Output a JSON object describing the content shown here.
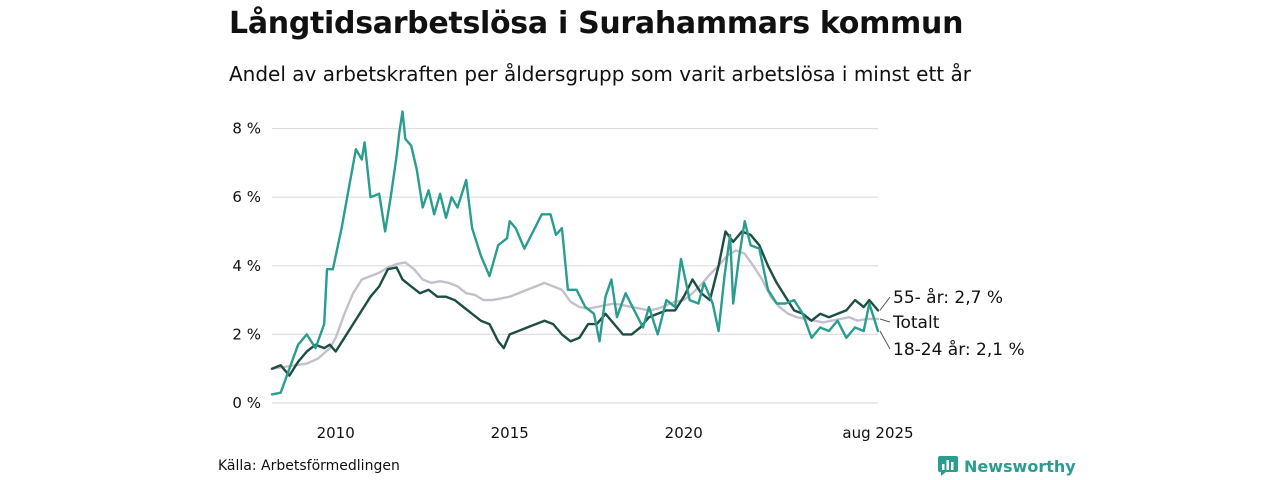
{
  "title": "Långtidsarbetslösa i Surahammars kommun",
  "subtitle": "Andel av arbetskraften per åldersgrupp som varit arbetslösa i minst ett år",
  "source": "Källa: Arbetsförmedlingen",
  "brand": "Newsworthy",
  "colors": {
    "age_55": "#1e4d45",
    "total": "#c3c0cc",
    "age_18_24": "#2a9d8f",
    "grid": "#dedede",
    "brand": "#2a9d8f"
  },
  "chart_data": {
    "type": "line",
    "xlim": [
      2008.17,
      2025.58
    ],
    "ylim": [
      0,
      8.6
    ],
    "y_ticks": [
      0,
      2,
      4,
      6,
      8
    ],
    "y_tick_labels": [
      "0 %",
      "2 %",
      "4 %",
      "6 %",
      "8 %"
    ],
    "x_ticks": [
      2010,
      2015,
      2020,
      2025.58
    ],
    "x_tick_labels": [
      "2010",
      "2015",
      "2020",
      "aug 2025"
    ],
    "grid": true,
    "legend": "line-end labels",
    "series": [
      {
        "name": "Totalt",
        "label": "Totalt",
        "color_key": "total",
        "points": [
          [
            2008.17,
            1.0
          ],
          [
            2008.5,
            1.05
          ],
          [
            2008.83,
            1.1
          ],
          [
            2009.17,
            1.15
          ],
          [
            2009.5,
            1.3
          ],
          [
            2009.83,
            1.6
          ],
          [
            2010.0,
            1.9
          ],
          [
            2010.25,
            2.6
          ],
          [
            2010.5,
            3.2
          ],
          [
            2010.75,
            3.6
          ],
          [
            2011.0,
            3.7
          ],
          [
            2011.25,
            3.8
          ],
          [
            2011.5,
            3.95
          ],
          [
            2011.75,
            4.05
          ],
          [
            2012.0,
            4.1
          ],
          [
            2012.25,
            3.9
          ],
          [
            2012.5,
            3.6
          ],
          [
            2012.75,
            3.5
          ],
          [
            2013.0,
            3.55
          ],
          [
            2013.25,
            3.5
          ],
          [
            2013.5,
            3.4
          ],
          [
            2013.75,
            3.2
          ],
          [
            2014.0,
            3.15
          ],
          [
            2014.25,
            3.0
          ],
          [
            2014.5,
            3.0
          ],
          [
            2014.75,
            3.05
          ],
          [
            2015.0,
            3.1
          ],
          [
            2015.25,
            3.2
          ],
          [
            2015.5,
            3.3
          ],
          [
            2015.75,
            3.4
          ],
          [
            2016.0,
            3.5
          ],
          [
            2016.25,
            3.4
          ],
          [
            2016.5,
            3.3
          ],
          [
            2016.75,
            2.95
          ],
          [
            2017.0,
            2.8
          ],
          [
            2017.25,
            2.75
          ],
          [
            2017.5,
            2.8
          ],
          [
            2017.75,
            2.85
          ],
          [
            2018.0,
            2.9
          ],
          [
            2018.25,
            2.85
          ],
          [
            2018.5,
            2.8
          ],
          [
            2018.75,
            2.75
          ],
          [
            2019.0,
            2.7
          ],
          [
            2019.25,
            2.75
          ],
          [
            2019.5,
            2.85
          ],
          [
            2019.75,
            2.95
          ],
          [
            2020.0,
            3.0
          ],
          [
            2020.25,
            3.2
          ],
          [
            2020.5,
            3.45
          ],
          [
            2020.75,
            3.75
          ],
          [
            2021.0,
            4.0
          ],
          [
            2021.25,
            4.3
          ],
          [
            2021.5,
            4.45
          ],
          [
            2021.75,
            4.35
          ],
          [
            2022.0,
            4.0
          ],
          [
            2022.25,
            3.6
          ],
          [
            2022.5,
            3.1
          ],
          [
            2022.75,
            2.8
          ],
          [
            2023.0,
            2.6
          ],
          [
            2023.25,
            2.5
          ],
          [
            2023.5,
            2.45
          ],
          [
            2023.75,
            2.4
          ],
          [
            2024.0,
            2.35
          ],
          [
            2024.25,
            2.4
          ],
          [
            2024.5,
            2.45
          ],
          [
            2024.75,
            2.5
          ],
          [
            2025.0,
            2.4
          ],
          [
            2025.25,
            2.45
          ],
          [
            2025.58,
            2.45
          ]
        ]
      },
      {
        "name": "55- år",
        "label": "55- år: 2,7 %",
        "color_key": "age_55",
        "points": [
          [
            2008.17,
            1.0
          ],
          [
            2008.42,
            1.1
          ],
          [
            2008.67,
            0.8
          ],
          [
            2008.92,
            1.2
          ],
          [
            2009.17,
            1.5
          ],
          [
            2009.42,
            1.7
          ],
          [
            2009.67,
            1.6
          ],
          [
            2009.83,
            1.7
          ],
          [
            2010.0,
            1.5
          ],
          [
            2010.25,
            1.9
          ],
          [
            2010.5,
            2.3
          ],
          [
            2010.75,
            2.7
          ],
          [
            2011.0,
            3.1
          ],
          [
            2011.25,
            3.4
          ],
          [
            2011.5,
            3.9
          ],
          [
            2011.75,
            3.95
          ],
          [
            2011.92,
            3.6
          ],
          [
            2012.17,
            3.4
          ],
          [
            2012.42,
            3.2
          ],
          [
            2012.67,
            3.3
          ],
          [
            2012.92,
            3.1
          ],
          [
            2013.17,
            3.1
          ],
          [
            2013.42,
            3.0
          ],
          [
            2013.67,
            2.8
          ],
          [
            2013.92,
            2.6
          ],
          [
            2014.17,
            2.4
          ],
          [
            2014.42,
            2.3
          ],
          [
            2014.67,
            1.8
          ],
          [
            2014.83,
            1.6
          ],
          [
            2015.0,
            2.0
          ],
          [
            2015.25,
            2.1
          ],
          [
            2015.5,
            2.2
          ],
          [
            2015.75,
            2.3
          ],
          [
            2016.0,
            2.4
          ],
          [
            2016.25,
            2.3
          ],
          [
            2016.5,
            2.0
          ],
          [
            2016.75,
            1.8
          ],
          [
            2017.0,
            1.9
          ],
          [
            2017.25,
            2.3
          ],
          [
            2017.5,
            2.3
          ],
          [
            2017.75,
            2.6
          ],
          [
            2018.0,
            2.3
          ],
          [
            2018.25,
            2.0
          ],
          [
            2018.5,
            2.0
          ],
          [
            2018.75,
            2.2
          ],
          [
            2019.0,
            2.5
          ],
          [
            2019.25,
            2.6
          ],
          [
            2019.5,
            2.7
          ],
          [
            2019.75,
            2.7
          ],
          [
            2020.0,
            3.1
          ],
          [
            2020.25,
            3.6
          ],
          [
            2020.5,
            3.2
          ],
          [
            2020.75,
            3.0
          ],
          [
            2021.0,
            4.0
          ],
          [
            2021.2,
            5.0
          ],
          [
            2021.42,
            4.7
          ],
          [
            2021.67,
            5.0
          ],
          [
            2021.92,
            4.9
          ],
          [
            2022.17,
            4.6
          ],
          [
            2022.42,
            4.0
          ],
          [
            2022.67,
            3.5
          ],
          [
            2022.92,
            3.1
          ],
          [
            2023.17,
            2.7
          ],
          [
            2023.42,
            2.6
          ],
          [
            2023.67,
            2.4
          ],
          [
            2023.92,
            2.6
          ],
          [
            2024.17,
            2.5
          ],
          [
            2024.42,
            2.6
          ],
          [
            2024.67,
            2.7
          ],
          [
            2024.92,
            3.0
          ],
          [
            2025.17,
            2.8
          ],
          [
            2025.33,
            3.0
          ],
          [
            2025.58,
            2.7
          ]
        ]
      },
      {
        "name": "18-24 år",
        "label": "18-24 år: 2,1 %",
        "color_key": "age_18_24",
        "points": [
          [
            2008.17,
            0.25
          ],
          [
            2008.42,
            0.3
          ],
          [
            2008.67,
            1.0
          ],
          [
            2008.92,
            1.7
          ],
          [
            2009.17,
            2.0
          ],
          [
            2009.42,
            1.6
          ],
          [
            2009.67,
            2.3
          ],
          [
            2009.75,
            3.9
          ],
          [
            2009.92,
            3.9
          ],
          [
            2010.17,
            5.1
          ],
          [
            2010.42,
            6.5
          ],
          [
            2010.58,
            7.4
          ],
          [
            2010.75,
            7.1
          ],
          [
            2010.83,
            7.6
          ],
          [
            2011.0,
            6.0
          ],
          [
            2011.25,
            6.1
          ],
          [
            2011.42,
            5.0
          ],
          [
            2011.58,
            6.0
          ],
          [
            2011.75,
            7.2
          ],
          [
            2011.83,
            7.9
          ],
          [
            2011.92,
            8.5
          ],
          [
            2012.0,
            7.7
          ],
          [
            2012.17,
            7.5
          ],
          [
            2012.33,
            6.8
          ],
          [
            2012.5,
            5.7
          ],
          [
            2012.67,
            6.2
          ],
          [
            2012.83,
            5.5
          ],
          [
            2013.0,
            6.1
          ],
          [
            2013.17,
            5.4
          ],
          [
            2013.33,
            6.0
          ],
          [
            2013.5,
            5.7
          ],
          [
            2013.75,
            6.5
          ],
          [
            2013.92,
            5.1
          ],
          [
            2014.17,
            4.3
          ],
          [
            2014.42,
            3.7
          ],
          [
            2014.67,
            4.6
          ],
          [
            2014.92,
            4.8
          ],
          [
            2015.0,
            5.3
          ],
          [
            2015.17,
            5.1
          ],
          [
            2015.42,
            4.5
          ],
          [
            2015.67,
            5.0
          ],
          [
            2015.92,
            5.5
          ],
          [
            2016.17,
            5.5
          ],
          [
            2016.33,
            4.9
          ],
          [
            2016.5,
            5.1
          ],
          [
            2016.67,
            3.3
          ],
          [
            2016.92,
            3.3
          ],
          [
            2017.17,
            2.8
          ],
          [
            2017.42,
            2.6
          ],
          [
            2017.58,
            1.8
          ],
          [
            2017.75,
            3.1
          ],
          [
            2017.92,
            3.6
          ],
          [
            2018.08,
            2.5
          ],
          [
            2018.33,
            3.2
          ],
          [
            2018.58,
            2.7
          ],
          [
            2018.83,
            2.2
          ],
          [
            2019.0,
            2.8
          ],
          [
            2019.25,
            2.0
          ],
          [
            2019.5,
            3.0
          ],
          [
            2019.75,
            2.8
          ],
          [
            2019.92,
            4.2
          ],
          [
            2020.17,
            3.0
          ],
          [
            2020.42,
            2.9
          ],
          [
            2020.58,
            3.5
          ],
          [
            2020.83,
            2.9
          ],
          [
            2021.0,
            2.1
          ],
          [
            2021.17,
            3.7
          ],
          [
            2021.33,
            4.9
          ],
          [
            2021.42,
            2.9
          ],
          [
            2021.58,
            4.2
          ],
          [
            2021.75,
            5.3
          ],
          [
            2021.92,
            4.6
          ],
          [
            2022.17,
            4.5
          ],
          [
            2022.42,
            3.3
          ],
          [
            2022.67,
            2.9
          ],
          [
            2022.92,
            2.9
          ],
          [
            2023.17,
            3.0
          ],
          [
            2023.42,
            2.6
          ],
          [
            2023.67,
            1.9
          ],
          [
            2023.92,
            2.2
          ],
          [
            2024.17,
            2.1
          ],
          [
            2024.42,
            2.4
          ],
          [
            2024.67,
            1.9
          ],
          [
            2024.92,
            2.2
          ],
          [
            2025.17,
            2.1
          ],
          [
            2025.33,
            2.9
          ],
          [
            2025.58,
            2.1
          ]
        ]
      }
    ]
  }
}
